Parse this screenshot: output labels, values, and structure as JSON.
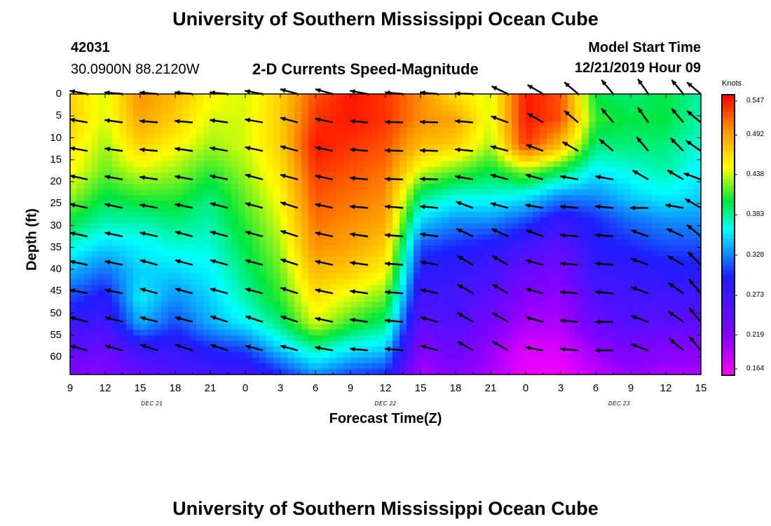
{
  "titles": {
    "top": "University of Southern Mississippi Ocean Cube",
    "bottom": "University of Southern Mississippi Ocean Cube"
  },
  "header": {
    "station": "42031",
    "location": "30.0900N 88.2120W",
    "subtitle": "2-D Currents Speed-Magnitude",
    "model_label": "Model Start Time",
    "model_time": "12/21/2019 Hour 09"
  },
  "chart_data": {
    "type": "heatmap",
    "xlabel": "Forecast Time(Z)",
    "ylabel": "Depth (ft)",
    "x_ticks": [
      "9",
      "12",
      "15",
      "18",
      "21",
      "0",
      "3",
      "6",
      "9",
      "12",
      "15",
      "18",
      "21",
      "0",
      "3",
      "6",
      "9",
      "12",
      "15"
    ],
    "date_labels": [
      {
        "text": "DEC 21",
        "hours_from_start": 7
      },
      {
        "text": "DEC 22",
        "hours_from_start": 27
      },
      {
        "text": "DEC 23",
        "hours_from_start": 47
      }
    ],
    "y_ticks": [
      0,
      5,
      10,
      15,
      20,
      25,
      30,
      35,
      40,
      45,
      50,
      55,
      60
    ],
    "ylim": [
      0,
      64
    ],
    "xlim_hours": [
      0,
      54
    ],
    "colorbar": {
      "unit": "Knots",
      "ticks": [
        "0.547",
        "0.492",
        "0.438",
        "0.383",
        "0.328",
        "0.273",
        "0.219",
        "0.164"
      ],
      "min": 0.164,
      "max": 0.547
    },
    "columns": [
      {
        "hour": 0,
        "v": [
          0.47,
          0.47,
          0.46,
          0.45,
          0.43,
          0.4,
          0.37,
          0.34,
          0.31,
          0.28,
          0.25,
          0.22
        ]
      },
      {
        "hour": 3,
        "v": [
          0.44,
          0.44,
          0.43,
          0.42,
          0.4,
          0.38,
          0.35,
          0.32,
          0.29,
          0.27,
          0.24,
          0.22
        ]
      },
      {
        "hour": 6,
        "v": [
          0.5,
          0.49,
          0.47,
          0.44,
          0.41,
          0.38,
          0.36,
          0.35,
          0.36,
          0.34,
          0.28,
          0.24
        ]
      },
      {
        "hour": 9,
        "v": [
          0.48,
          0.47,
          0.45,
          0.43,
          0.41,
          0.39,
          0.37,
          0.35,
          0.33,
          0.31,
          0.28,
          0.26
        ]
      },
      {
        "hour": 12,
        "v": [
          0.45,
          0.44,
          0.43,
          0.41,
          0.39,
          0.38,
          0.37,
          0.36,
          0.35,
          0.34,
          0.3,
          0.27
        ]
      },
      {
        "hour": 15,
        "v": [
          0.44,
          0.44,
          0.44,
          0.43,
          0.42,
          0.41,
          0.4,
          0.39,
          0.38,
          0.36,
          0.31,
          0.27
        ]
      },
      {
        "hour": 18,
        "v": [
          0.47,
          0.47,
          0.47,
          0.46,
          0.45,
          0.44,
          0.43,
          0.42,
          0.41,
          0.39,
          0.35,
          0.3
        ]
      },
      {
        "hour": 21,
        "v": [
          0.52,
          0.53,
          0.54,
          0.53,
          0.52,
          0.51,
          0.5,
          0.48,
          0.46,
          0.44,
          0.38,
          0.33
        ]
      },
      {
        "hour": 24,
        "v": [
          0.54,
          0.54,
          0.53,
          0.52,
          0.51,
          0.5,
          0.49,
          0.47,
          0.44,
          0.41,
          0.36,
          0.31
        ]
      },
      {
        "hour": 27,
        "v": [
          0.53,
          0.53,
          0.52,
          0.51,
          0.5,
          0.49,
          0.47,
          0.45,
          0.42,
          0.39,
          0.35,
          0.3
        ]
      },
      {
        "hour": 30,
        "v": [
          0.5,
          0.5,
          0.48,
          0.44,
          0.39,
          0.35,
          0.31,
          0.29,
          0.27,
          0.25,
          0.22,
          0.2
        ]
      },
      {
        "hour": 33,
        "v": [
          0.46,
          0.49,
          0.47,
          0.42,
          0.37,
          0.33,
          0.3,
          0.28,
          0.27,
          0.26,
          0.24,
          0.22
        ]
      },
      {
        "hour": 36,
        "v": [
          0.44,
          0.44,
          0.43,
          0.4,
          0.37,
          0.33,
          0.29,
          0.27,
          0.25,
          0.23,
          0.21,
          0.2
        ]
      },
      {
        "hour": 39,
        "v": [
          0.54,
          0.54,
          0.53,
          0.43,
          0.36,
          0.31,
          0.27,
          0.24,
          0.22,
          0.2,
          0.18,
          0.17
        ]
      },
      {
        "hour": 42,
        "v": [
          0.52,
          0.52,
          0.48,
          0.4,
          0.33,
          0.28,
          0.25,
          0.23,
          0.21,
          0.2,
          0.18,
          0.17
        ]
      },
      {
        "hour": 45,
        "v": [
          0.4,
          0.41,
          0.39,
          0.36,
          0.33,
          0.3,
          0.29,
          0.28,
          0.26,
          0.24,
          0.21,
          0.19
        ]
      },
      {
        "hour": 48,
        "v": [
          0.39,
          0.4,
          0.39,
          0.37,
          0.35,
          0.32,
          0.3,
          0.28,
          0.27,
          0.26,
          0.23,
          0.21
        ]
      },
      {
        "hour": 51,
        "v": [
          0.4,
          0.4,
          0.39,
          0.38,
          0.36,
          0.33,
          0.31,
          0.29,
          0.27,
          0.25,
          0.22,
          0.2
        ]
      },
      {
        "hour": 54,
        "v": [
          0.38,
          0.38,
          0.37,
          0.36,
          0.35,
          0.33,
          0.31,
          0.29,
          0.27,
          0.25,
          0.22,
          0.2
        ]
      }
    ],
    "vector_hours": [
      1.5,
      4.5,
      7.5,
      10.5,
      13.5,
      16.5,
      19.5,
      22.5,
      25.5,
      28.5,
      31.5,
      34.5,
      37.5,
      40.5,
      43.5,
      46.5,
      49.5,
      52.5,
      54
    ],
    "vector_depths": [
      0,
      6.5,
      13,
      19.5,
      26,
      32.5,
      39,
      45.5,
      52,
      58.5
    ],
    "vector_angles_deg": [
      [
        170,
        175,
        175,
        175,
        175,
        170,
        165,
        165,
        170,
        175,
        175,
        178,
        155,
        150,
        140,
        130,
        125,
        130,
        140
      ],
      [
        170,
        172,
        175,
        175,
        172,
        170,
        165,
        168,
        175,
        178,
        178,
        175,
        160,
        150,
        140,
        130,
        125,
        130,
        140
      ],
      [
        170,
        172,
        175,
        172,
        170,
        168,
        165,
        168,
        175,
        178,
        178,
        175,
        165,
        160,
        150,
        140,
        130,
        135,
        145
      ],
      [
        168,
        170,
        172,
        170,
        168,
        165,
        165,
        168,
        175,
        178,
        178,
        170,
        165,
        165,
        170,
        170,
        150,
        150,
        160
      ],
      [
        168,
        168,
        170,
        168,
        165,
        165,
        162,
        168,
        175,
        175,
        175,
        160,
        165,
        170,
        175,
        175,
        180,
        170,
        150
      ],
      [
        168,
        168,
        168,
        165,
        165,
        165,
        162,
        168,
        172,
        175,
        172,
        155,
        155,
        160,
        175,
        175,
        160,
        155,
        140
      ],
      [
        168,
        168,
        165,
        165,
        165,
        165,
        162,
        168,
        172,
        175,
        170,
        150,
        150,
        165,
        175,
        175,
        160,
        150,
        135
      ],
      [
        168,
        168,
        165,
        165,
        165,
        165,
        162,
        168,
        172,
        175,
        168,
        150,
        150,
        165,
        175,
        175,
        160,
        145,
        130
      ],
      [
        165,
        165,
        165,
        165,
        162,
        162,
        162,
        168,
        172,
        175,
        165,
        150,
        150,
        165,
        175,
        180,
        160,
        145,
        130
      ],
      [
        165,
        165,
        162,
        162,
        162,
        165,
        165,
        170,
        175,
        175,
        165,
        150,
        150,
        170,
        175,
        180,
        160,
        140,
        130
      ]
    ]
  }
}
